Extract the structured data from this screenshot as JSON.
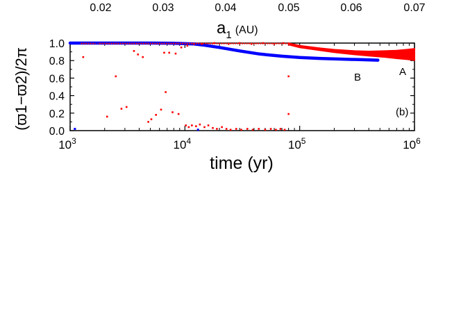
{
  "chart_data": [
    {
      "type": "axis",
      "position": "top",
      "label_main": "a",
      "label_sub": "1",
      "label_unit": "(AU)",
      "tick_labels": [
        "0.02",
        "0.03",
        "0.04",
        "0.05",
        "0.06",
        "0.07"
      ]
    },
    {
      "type": "scatter",
      "xlabel": "time (yr)",
      "xscale": "log",
      "xlim": [
        1000,
        1000000
      ],
      "x_tick_bases": [
        "10",
        "10",
        "10",
        "10"
      ],
      "x_tick_exponents": [
        "3",
        "4",
        "5",
        "6"
      ],
      "x_tick_values": [
        1000,
        10000,
        100000,
        1000000
      ],
      "ylabel": "(ϖ1−ϖ2)/2π",
      "ylim": [
        0,
        1
      ],
      "y_tick_labels": [
        "1.0",
        "0.8",
        "0.6",
        "0.4",
        "0.2",
        "0.0"
      ],
      "y_tick_values": [
        1.0,
        0.8,
        0.6,
        0.4,
        0.2,
        0.0
      ],
      "panel_label": "(b)",
      "series": [
        {
          "name": "A",
          "color": "#ff0000",
          "scatter_points": [
            [
              1300,
              0.84
            ],
            [
              2100,
              0.16
            ],
            [
              2500,
              0.62
            ],
            [
              2800,
              0.25
            ],
            [
              3100,
              0.27
            ],
            [
              3600,
              0.91
            ],
            [
              3900,
              0.87
            ],
            [
              4300,
              0.84
            ],
            [
              4800,
              0.1
            ],
            [
              5100,
              0.13
            ],
            [
              5600,
              0.18
            ],
            [
              6200,
              0.24
            ],
            [
              6600,
              0.89
            ],
            [
              6800,
              0.44
            ],
            [
              7300,
              0.89
            ],
            [
              7800,
              0.21
            ],
            [
              8300,
              0.88
            ],
            [
              8800,
              0.19
            ],
            [
              9300,
              0.95
            ],
            [
              10500,
              0.97
            ],
            [
              12000,
              0.99
            ],
            [
              14000,
              0.99
            ],
            [
              10200,
              0.06
            ],
            [
              10800,
              0.04
            ],
            [
              11500,
              0.06
            ],
            [
              12500,
              0.05
            ],
            [
              13500,
              0.07
            ],
            [
              14800,
              0.04
            ],
            [
              16000,
              0.06
            ],
            [
              17500,
              0.03
            ],
            [
              19000,
              0.02
            ],
            [
              21000,
              0.04
            ],
            [
              23000,
              0.02
            ],
            [
              25000,
              0.01
            ],
            [
              28000,
              0.02
            ],
            [
              31000,
              0.01
            ],
            [
              35000,
              0.02
            ],
            [
              39000,
              0.01
            ],
            [
              44000,
              0.02
            ],
            [
              50000,
              0.01
            ],
            [
              56000,
              0.02
            ],
            [
              62000,
              0.01
            ],
            [
              68000,
              0.02
            ],
            [
              74000,
              0.01
            ],
            [
              80000,
              0.62
            ],
            [
              80000,
              0.19
            ],
            [
              18000,
              1.0
            ],
            [
              24000,
              0.99
            ],
            [
              30000,
              1.0
            ],
            [
              38000,
              0.99
            ],
            [
              48000,
              1.0
            ],
            [
              60000,
              0.99
            ],
            [
              72000,
              1.0
            ]
          ],
          "band_x": [
            80000,
            100000,
            150000,
            200000,
            300000,
            400000,
            550000,
            700000,
            850000,
            1000000
          ],
          "band_center": [
            0.99,
            0.96,
            0.93,
            0.91,
            0.89,
            0.88,
            0.875,
            0.87,
            0.87,
            0.87
          ],
          "band_halfwidth": [
            0.008,
            0.01,
            0.012,
            0.015,
            0.02,
            0.025,
            0.035,
            0.045,
            0.055,
            0.065
          ]
        },
        {
          "name": "B",
          "color": "#0000ff",
          "line_points": [
            [
              1000,
              1.0
            ],
            [
              2000,
              1.0
            ],
            [
              5000,
              1.0
            ],
            [
              8000,
              0.998
            ],
            [
              12000,
              0.99
            ],
            [
              15000,
              0.975
            ],
            [
              20000,
              0.95
            ],
            [
              30000,
              0.91
            ],
            [
              45000,
              0.875
            ],
            [
              70000,
              0.85
            ],
            [
              100000,
              0.835
            ],
            [
              150000,
              0.825
            ],
            [
              250000,
              0.815
            ],
            [
              350000,
              0.81
            ],
            [
              480000,
              0.805
            ]
          ],
          "scatter_points": [
            [
              1100,
              0.02
            ],
            [
              1700,
              1.0
            ],
            [
              13000,
              0.01
            ]
          ]
        }
      ]
    }
  ]
}
